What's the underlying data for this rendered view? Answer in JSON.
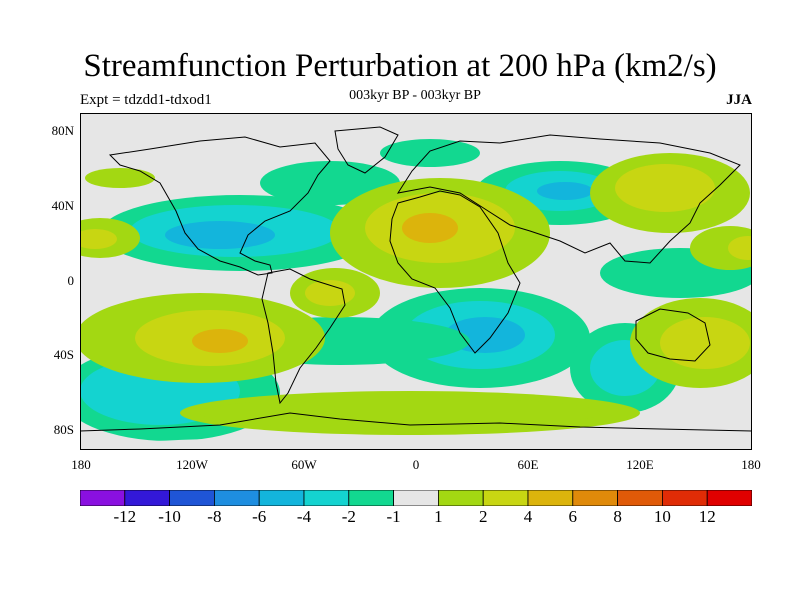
{
  "title": "Streamfunction Perturbation at 200 hPa (km2/s)",
  "subtitle_left": "Expt = tdzdd1-tdxod1",
  "subtitle_center": "003kyr BP - 003kyr BP",
  "subtitle_right": "JJA",
  "y_ticks": [
    "80N",
    "40N",
    "0",
    "40S",
    "80S"
  ],
  "x_ticks": [
    "180",
    "120W",
    "60W",
    "0",
    "60E",
    "120E",
    "180"
  ],
  "colorbar": {
    "labels": [
      "-12",
      "-10",
      "-8",
      "-6",
      "-4",
      "-2",
      "-1",
      "1",
      "2",
      "4",
      "6",
      "8",
      "10",
      "12"
    ],
    "colors": [
      "#8a10e0",
      "#3318d8",
      "#1f55d6",
      "#1e8ee0",
      "#13b5dc",
      "#14d3d0",
      "#12d890",
      "#e6e6e6",
      "#a3d812",
      "#c8d612",
      "#dcb40c",
      "#e08a0a",
      "#e05a08",
      "#e02c06",
      "#e00000"
    ]
  },
  "colors": {
    "neutral": "#e6e6e6",
    "pos_low": "#a3d812",
    "pos_mid": "#c8d612",
    "pos_high": "#dcb40c",
    "neg_low": "#12d890",
    "neg_mid": "#14d3d0",
    "neg_high": "#13b5dc",
    "neg_max": "#1e8ee0"
  }
}
